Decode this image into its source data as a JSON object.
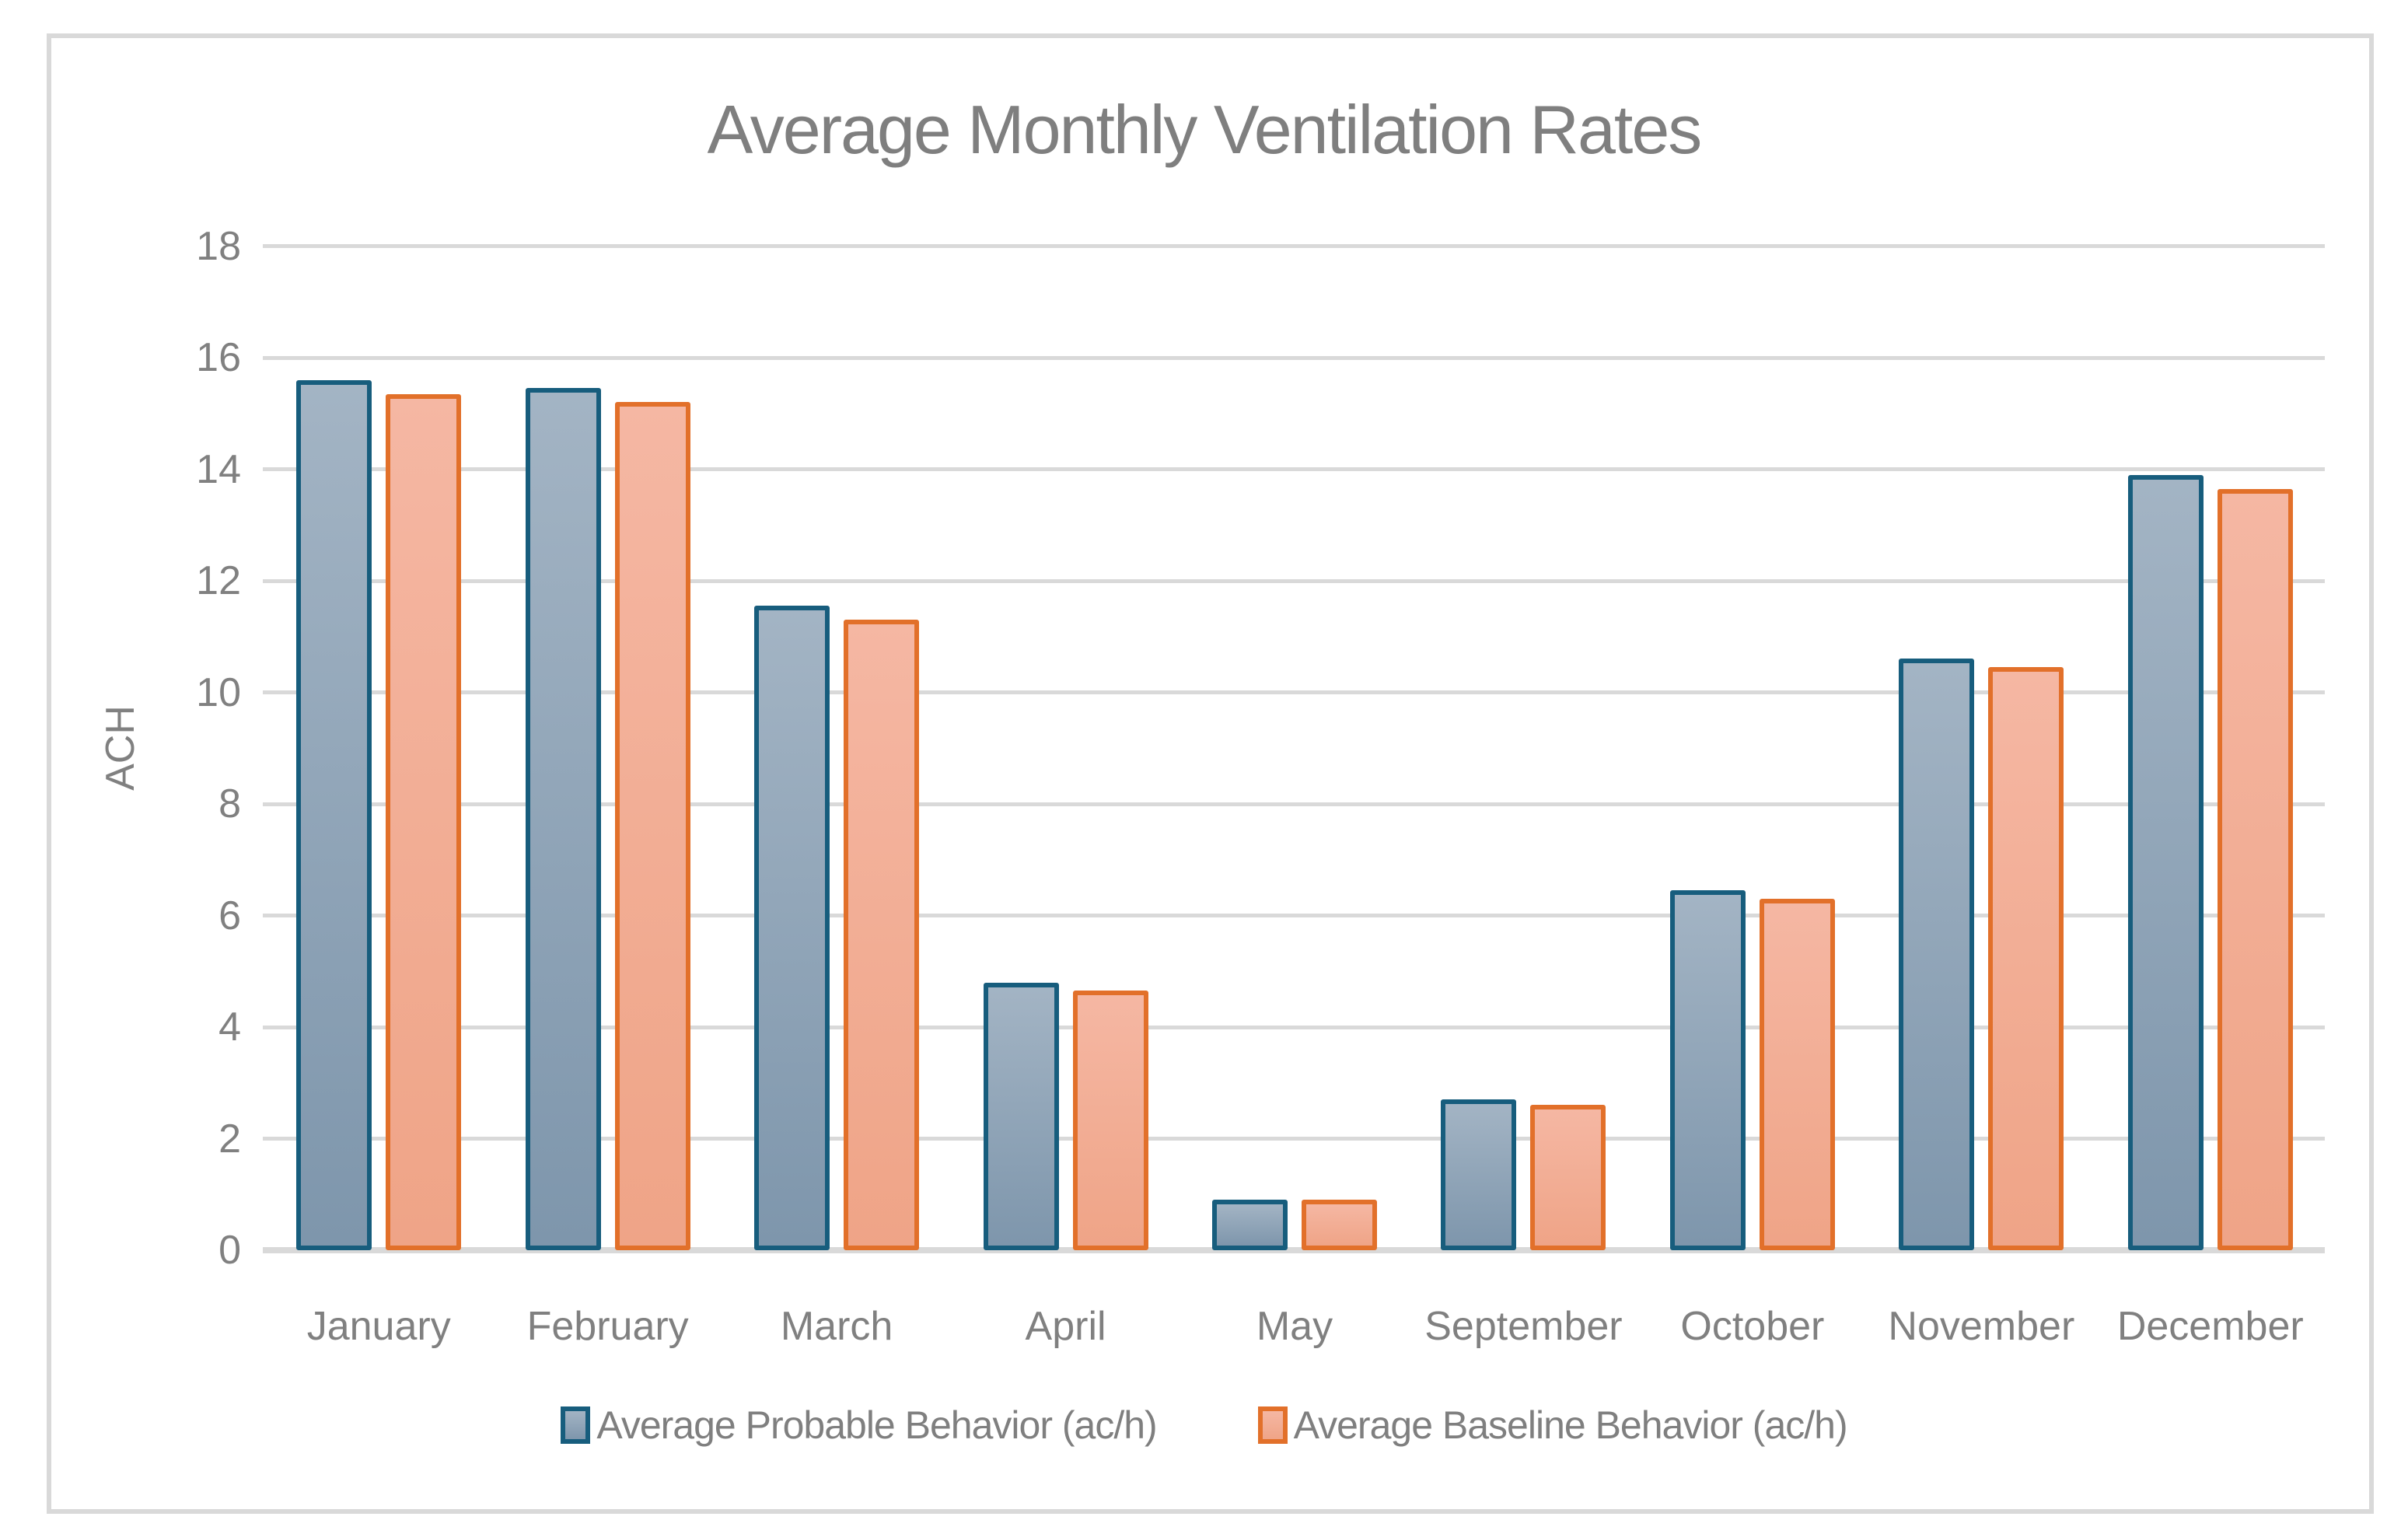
{
  "chart_data": {
    "type": "bar",
    "title": "Average Monthly Ventilation Rates",
    "xlabel": "",
    "ylabel": "ACH",
    "ylim": [
      0,
      18
    ],
    "ytick_step": 2,
    "yticks": [
      0,
      2,
      4,
      6,
      8,
      10,
      12,
      14,
      16,
      18
    ],
    "grid": true,
    "legend_position": "bottom",
    "categories": [
      "January",
      "February",
      "March",
      "April",
      "May",
      "September",
      "October",
      "November",
      "December"
    ],
    "series": [
      {
        "name": "Average Probable Behavior (ac/h)",
        "values": [
          15.6,
          15.45,
          11.55,
          4.8,
          0.9,
          2.7,
          6.45,
          10.6,
          13.9
        ]
      },
      {
        "name": "Average Baseline Behavior (ac/h)",
        "values": [
          15.35,
          15.2,
          11.3,
          4.65,
          0.9,
          2.6,
          6.3,
          10.45,
          13.65
        ]
      }
    ]
  },
  "colors": {
    "probable_border": "#175d7d",
    "probable_fill_top": "#a3b4c4",
    "probable_fill_bottom": "#7e96ac",
    "baseline_border": "#e2702a",
    "baseline_fill_top": "#f5b7a3",
    "baseline_fill_bottom": "#efa487",
    "gridline": "#d9d9d9",
    "axis_text": "#808080",
    "title_text": "#7f7f7f",
    "frame_border": "#d9d9d9"
  }
}
